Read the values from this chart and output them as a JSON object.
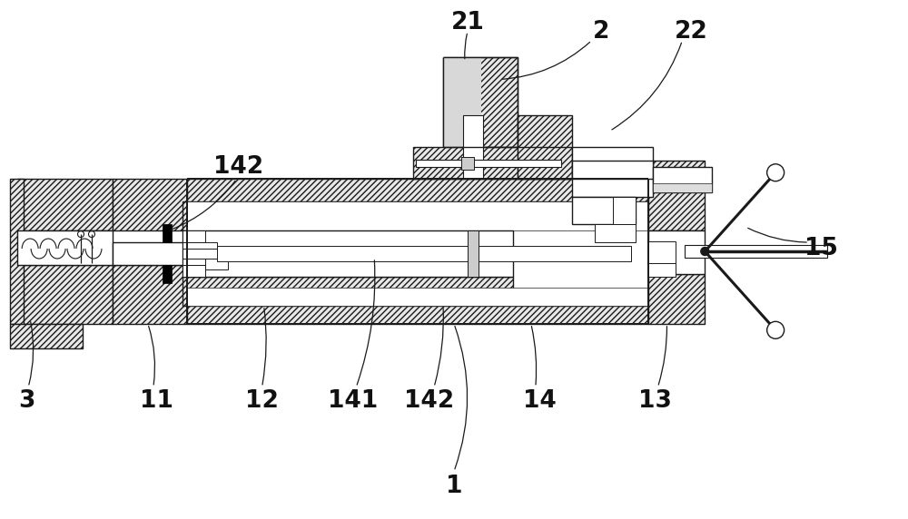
{
  "bg_color": "#ffffff",
  "lc": "#1a1a1a",
  "hatch_fc": "#e8e8e8",
  "hatch_fc2": "#d8d8d8",
  "black": "#000000",
  "label_color": "#111111",
  "fig_width": 10.0,
  "fig_height": 5.72,
  "lw": 1.0,
  "lw_thick": 1.4
}
